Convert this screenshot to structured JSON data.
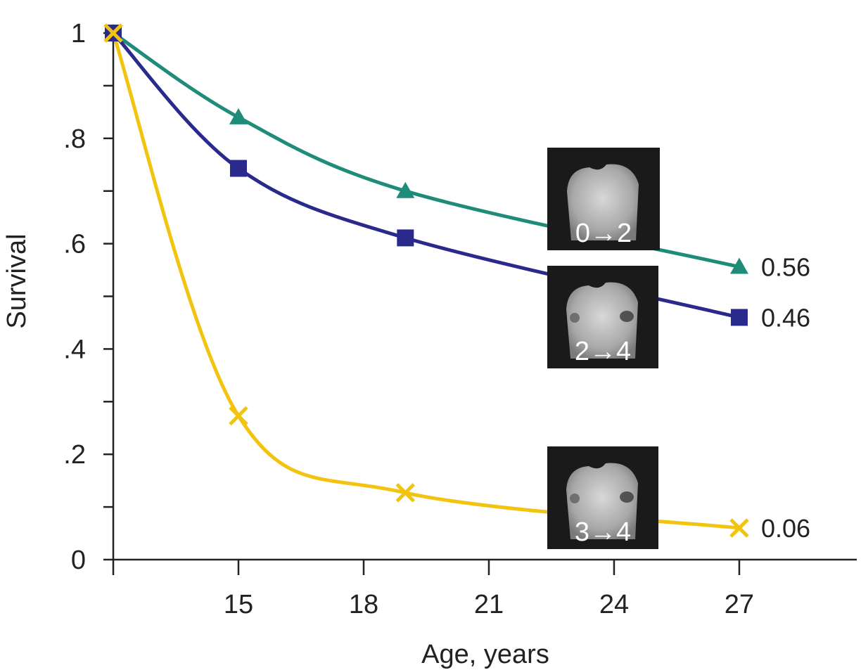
{
  "chart_data": {
    "type": "line",
    "title": "",
    "xlabel": "Age, years",
    "ylabel": "Survival",
    "xlim": [
      12,
      30
    ],
    "ylim": [
      0,
      1
    ],
    "x_ticks": [
      {
        "value": 15,
        "label": "15"
      },
      {
        "value": 18,
        "label": "18"
      },
      {
        "value": 21,
        "label": "21"
      },
      {
        "value": 24,
        "label": "24"
      },
      {
        "value": 27,
        "label": "27"
      }
    ],
    "y_ticks": [
      {
        "value": 0,
        "label": "0"
      },
      {
        "value": 0.2,
        "label": ".2"
      },
      {
        "value": 0.4,
        "label": ".4"
      },
      {
        "value": 0.6,
        "label": ".6"
      },
      {
        "value": 0.8,
        "label": ".8"
      },
      {
        "value": 1,
        "label": "1"
      }
    ],
    "y_minor_ticks": [
      0.1,
      0.3,
      0.5,
      0.7,
      0.9
    ],
    "grid": false,
    "series": [
      {
        "name": "0→2",
        "marker": "triangle",
        "color": "#1f8c7a",
        "x": [
          12,
          15,
          19,
          27
        ],
        "values": [
          1.0,
          0.84,
          0.7,
          0.556
        ],
        "end_label": "0.56"
      },
      {
        "name": "2→4",
        "marker": "square",
        "color": "#2a2a8c",
        "x": [
          12,
          15,
          19,
          27
        ],
        "values": [
          1.0,
          0.743,
          0.611,
          0.46
        ],
        "end_label": "0.46"
      },
      {
        "name": "3→4",
        "marker": "x",
        "color": "#f2c40f",
        "x": [
          12,
          15,
          19,
          27
        ],
        "values": [
          1.0,
          0.273,
          0.127,
          0.06
        ],
        "end_label": "0.06"
      }
    ],
    "insets": [
      {
        "label": "0→2",
        "series": "0→2"
      },
      {
        "label": "2→4",
        "series": "2→4"
      },
      {
        "label": "3→4",
        "series": "3→4"
      }
    ]
  }
}
